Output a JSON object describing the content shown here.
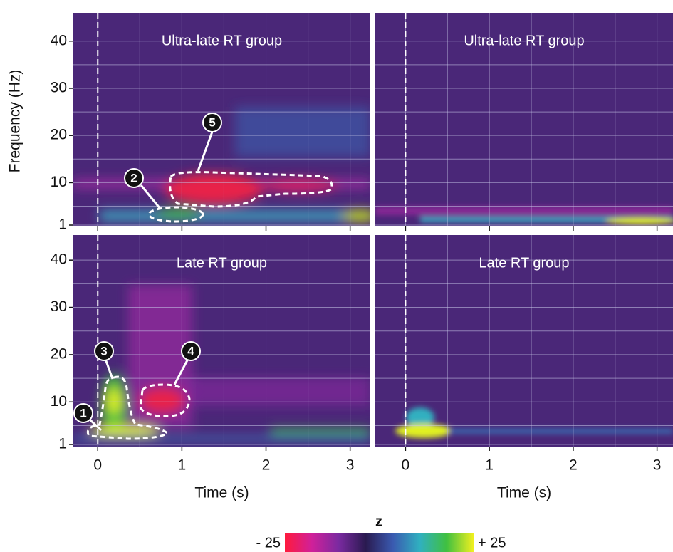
{
  "chart_data": [
    {
      "type": "heatmap",
      "title": "Ultra-late RT group",
      "ylabel": "Frequency (Hz)",
      "xlim": [
        -0.29,
        3.24
      ],
      "ylim": [
        0.7,
        46
      ],
      "xticks": [
        0,
        1,
        2,
        3
      ],
      "yticks": [
        1,
        10,
        20,
        30,
        40
      ],
      "minor_xticks": [
        0.5,
        1.5,
        2.5
      ],
      "minor_yticks": [
        5,
        15,
        25,
        35
      ],
      "xtick_labels": false,
      "ytick_labels": true,
      "grid": true,
      "annotations": [
        "5",
        "2"
      ]
    },
    {
      "type": "heatmap",
      "title": "Ultra-late RT group",
      "xlim": [
        -0.36,
        3.19
      ],
      "ylim": [
        0.7,
        46
      ],
      "xticks": [
        0,
        1,
        2,
        3
      ],
      "yticks": [
        1,
        10,
        20,
        30,
        40
      ],
      "minor_xticks": [
        0.5,
        1.5,
        2.5
      ],
      "minor_yticks": [
        5,
        15,
        25,
        35
      ],
      "xtick_labels": false,
      "ytick_labels": false,
      "grid": true
    },
    {
      "type": "heatmap",
      "title": "Late RT group",
      "xlabel": "Time (s)",
      "xlim": [
        -0.29,
        3.24
      ],
      "ylim": [
        0.55,
        45.3
      ],
      "xticks": [
        0,
        1,
        2,
        3
      ],
      "yticks": [
        1,
        10,
        20,
        30,
        40
      ],
      "minor_xticks": [
        0.5,
        1.5,
        2.5
      ],
      "minor_yticks": [
        5,
        15,
        25,
        35
      ],
      "xtick_labels": true,
      "ytick_labels": true,
      "grid": true,
      "annotations": [
        "3",
        "4",
        "1"
      ]
    },
    {
      "type": "heatmap",
      "title": "Late RT group",
      "xlabel": "Time (s)",
      "xlim": [
        -0.36,
        3.19
      ],
      "ylim": [
        0.55,
        45.3
      ],
      "xticks": [
        0,
        1,
        2,
        3
      ],
      "yticks": [
        1,
        10,
        20,
        30,
        40
      ],
      "minor_xticks": [
        0.5,
        1.5,
        2.5
      ],
      "minor_yticks": [
        5,
        15,
        25,
        35
      ],
      "xtick_labels": true,
      "ytick_labels": false,
      "grid": true
    }
  ],
  "colorbar": {
    "label": "z",
    "zlim": [
      -25,
      25
    ],
    "ticks": [
      {
        "value": -25,
        "label": "- 25"
      },
      {
        "value": 25,
        "label": "+ 25"
      }
    ],
    "colors": [
      "#ff1a3c",
      "#d0209a",
      "#7a2aa0",
      "#2a1a50",
      "#3a5ab0",
      "#30b0c0",
      "#40c040",
      "#f0f020"
    ]
  }
}
